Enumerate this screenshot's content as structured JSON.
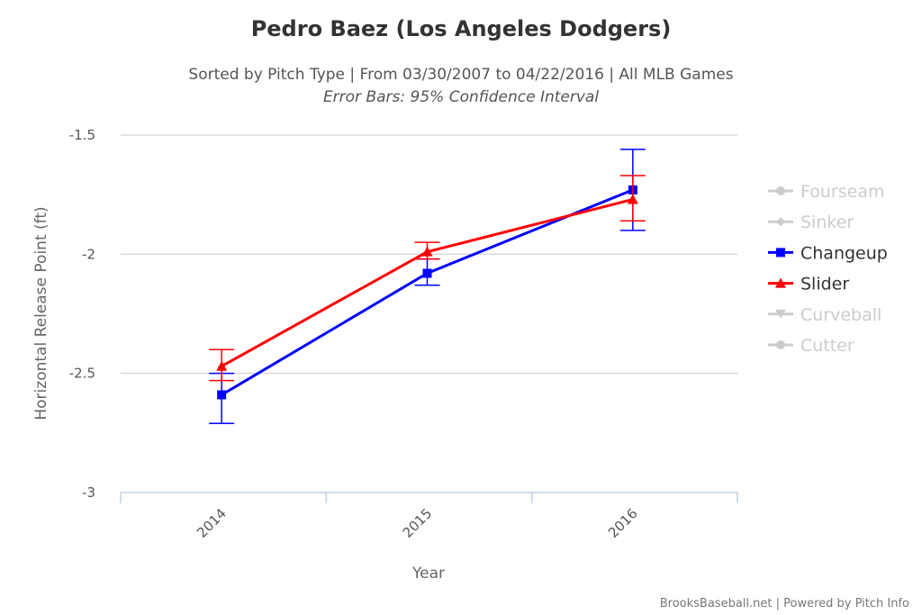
{
  "chart_data": {
    "type": "line",
    "title": "Pedro Baez (Los Angeles Dodgers)",
    "subtitle": "Sorted by Pitch Type | From 03/30/2007 to 04/22/2016 | All MLB Games",
    "subtitle2": "Error Bars: 95% Confidence Interval",
    "xlabel": "Year",
    "ylabel": "Horizontal Release Point (ft)",
    "categories": [
      "2014",
      "2015",
      "2016"
    ],
    "ylim": [
      -3,
      -1.5
    ],
    "yticks": [
      -1.5,
      -2,
      -2.5,
      -3
    ],
    "ytick_labels": [
      "-1.5",
      "-2",
      "-2.5",
      "-3"
    ],
    "grid": true,
    "legend_position": "right",
    "legend": [
      {
        "name": "Fourseam",
        "active": false,
        "color": "#cccccc",
        "marker": "circle"
      },
      {
        "name": "Sinker",
        "active": false,
        "color": "#cccccc",
        "marker": "diamond"
      },
      {
        "name": "Changeup",
        "active": true,
        "color": "#0000ff",
        "marker": "square"
      },
      {
        "name": "Slider",
        "active": true,
        "color": "#ff0000",
        "marker": "triangle"
      },
      {
        "name": "Curveball",
        "active": false,
        "color": "#cccccc",
        "marker": "triangle-down"
      },
      {
        "name": "Cutter",
        "active": false,
        "color": "#cccccc",
        "marker": "circle"
      }
    ],
    "series": [
      {
        "name": "Changeup",
        "color": "#0000ff",
        "marker": "square",
        "values": [
          -2.59,
          -2.08,
          -1.73
        ],
        "error_low": [
          -2.71,
          -2.13,
          -1.9
        ],
        "error_high": [
          -2.5,
          -2.02,
          -1.56
        ]
      },
      {
        "name": "Slider",
        "color": "#ff0000",
        "marker": "triangle",
        "values": [
          -2.47,
          -1.99,
          -1.77
        ],
        "error_low": [
          -2.53,
          -2.02,
          -1.86
        ],
        "error_high": [
          -2.4,
          -1.95,
          -1.67
        ]
      }
    ]
  },
  "credit": "BrooksBaseball.net | Powered by Pitch Info"
}
